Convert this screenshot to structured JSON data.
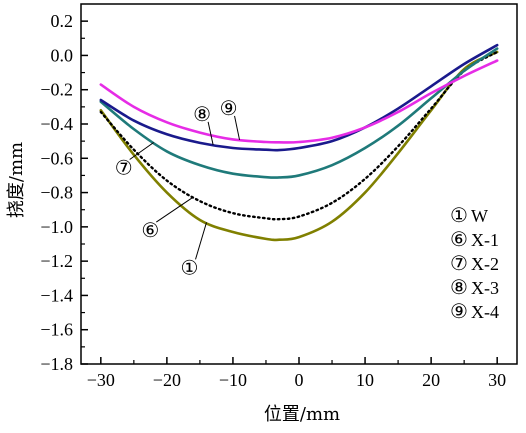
{
  "chart_data": {
    "type": "line",
    "xlabel": "位置/mm",
    "ylabel": "挠度/mm",
    "xlim": [
      -33,
      33
    ],
    "ylim": [
      -1.8,
      0.3
    ],
    "xticks": [
      -30,
      -20,
      -10,
      0,
      10,
      20,
      30
    ],
    "yticks": [
      0.2,
      0.0,
      -0.2,
      -0.4,
      -0.6,
      -0.8,
      -1.0,
      -1.2,
      -1.4,
      -1.6,
      -1.8
    ],
    "x_tick_labels": [
      "−30",
      "−20",
      "−10",
      "0",
      "10",
      "20",
      "30"
    ],
    "y_tick_labels": [
      "0.2",
      "0.0",
      "−0.2",
      "−0.4",
      "−0.6",
      "−0.8",
      "−1.0",
      "−1.2",
      "−1.4",
      "−1.6",
      "−1.8"
    ],
    "grid": false,
    "legend_position": "bottom-right",
    "x": [
      -30,
      -25,
      -20,
      -15,
      -10,
      -5,
      -3,
      0,
      5,
      10,
      15,
      20,
      25,
      30
    ],
    "series": [
      {
        "name": "W",
        "label": "①",
        "color": "#808000",
        "style": "solid",
        "values": [
          -0.32,
          -0.58,
          -0.8,
          -0.96,
          -1.03,
          -1.07,
          -1.075,
          -1.06,
          -0.97,
          -0.8,
          -0.57,
          -0.32,
          -0.08,
          0.02
        ]
      },
      {
        "name": "X-1",
        "label": "⑥",
        "color": "#000000",
        "style": "dotted",
        "values": [
          -0.33,
          -0.55,
          -0.73,
          -0.85,
          -0.92,
          -0.95,
          -0.955,
          -0.94,
          -0.86,
          -0.72,
          -0.53,
          -0.31,
          -0.09,
          0.02
        ]
      },
      {
        "name": "X-2",
        "label": "⑦",
        "color": "#1f7a7a",
        "style": "solid",
        "values": [
          -0.27,
          -0.43,
          -0.56,
          -0.64,
          -0.69,
          -0.71,
          -0.712,
          -0.7,
          -0.64,
          -0.54,
          -0.41,
          -0.25,
          -0.09,
          0.04
        ]
      },
      {
        "name": "X-3",
        "label": "⑧",
        "color": "#1a1a8c",
        "style": "solid",
        "values": [
          -0.26,
          -0.38,
          -0.46,
          -0.51,
          -0.54,
          -0.55,
          -0.552,
          -0.54,
          -0.5,
          -0.42,
          -0.31,
          -0.18,
          -0.05,
          0.06
        ]
      },
      {
        "name": "X-4",
        "label": "⑨",
        "color": "#e62ce6",
        "style": "solid",
        "values": [
          -0.17,
          -0.3,
          -0.39,
          -0.45,
          -0.49,
          -0.505,
          -0.507,
          -0.505,
          -0.48,
          -0.42,
          -0.33,
          -0.22,
          -0.12,
          -0.03
        ]
      }
    ],
    "annotations": [
      {
        "label": "⑧",
        "series": "X-3"
      },
      {
        "label": "⑨",
        "series": "X-4"
      },
      {
        "label": "⑦",
        "series": "X-2"
      },
      {
        "label": "⑥",
        "series": "X-1"
      },
      {
        "label": "①",
        "series": "W"
      }
    ],
    "legend": [
      {
        "mark": "①",
        "text": "W"
      },
      {
        "mark": "⑥",
        "text": "X-1"
      },
      {
        "mark": "⑦",
        "text": "X-2"
      },
      {
        "mark": "⑧",
        "text": "X-3"
      },
      {
        "mark": "⑨",
        "text": "X-4"
      }
    ]
  }
}
